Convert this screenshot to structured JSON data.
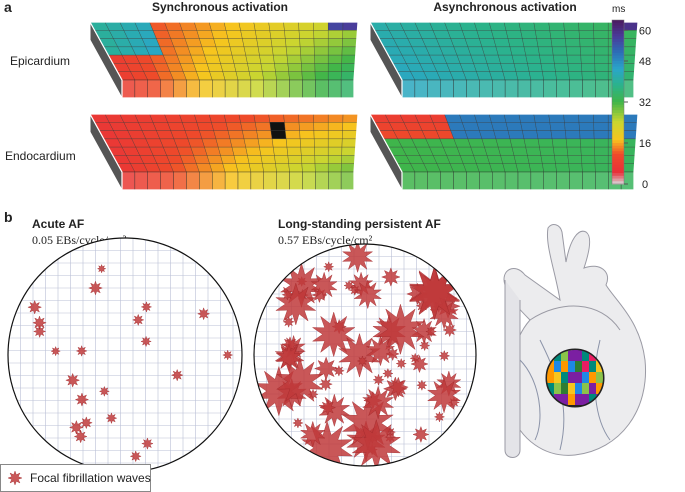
{
  "panel_a": {
    "label": "a",
    "titles": [
      "Synchronous activation",
      "Asynchronous activation"
    ],
    "rows": [
      "Epicardium",
      "Endocardium"
    ],
    "colorbar": {
      "unit": "ms",
      "range": [
        0,
        64
      ],
      "ticks": [
        0,
        16,
        32,
        48,
        60
      ]
    }
  },
  "panel_b": {
    "label": "b",
    "maps": [
      {
        "title": "Acute AF",
        "subtitle": "0.05 EBs/cycle/cm²"
      },
      {
        "title": "Long-standing persistent AF",
        "subtitle": "0.57 EBs/cycle/cm²"
      }
    ],
    "legend": "Focal fibrillation waves"
  }
}
